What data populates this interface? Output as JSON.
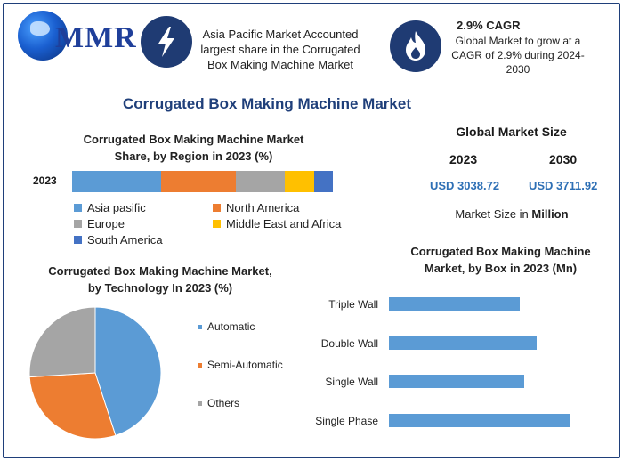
{
  "brand": {
    "logo_text": "MMR"
  },
  "header": {
    "highlight_text": "Asia Pacific Market Accounted largest share in the Corrugated Box Making Machine Market",
    "cagr_title": "2.9% CAGR",
    "cagr_text": "Global Market to grow at a CAGR of 2.9% during 2024-2030",
    "icons": [
      "lightning-icon",
      "flame-icon"
    ],
    "icon_circle_color": "#1f3b73"
  },
  "main_title": "Corrugated Box Making Machine Market",
  "global_market": {
    "title": "Global Market Size",
    "year_a": "2023",
    "year_b": "2030",
    "value_a": "USD 3038.72",
    "value_b": "USD 3711.92",
    "note_prefix": "Market Size in ",
    "note_unit": "Million"
  },
  "chart_data": [
    {
      "id": "region",
      "type": "bar",
      "stacked": true,
      "orientation": "horizontal",
      "title": "Corrugated Box Making Machine Market Share, by Region in 2023 (%)",
      "categories": [
        "2023"
      ],
      "series": [
        {
          "name": "Asia pasific",
          "values": [
            33
          ],
          "color": "#5b9bd5"
        },
        {
          "name": "North America",
          "values": [
            28
          ],
          "color": "#ed7d31"
        },
        {
          "name": "Europe",
          "values": [
            18
          ],
          "color": "#a5a5a5"
        },
        {
          "name": "Middle East and Africa",
          "values": [
            11
          ],
          "color": "#ffc000"
        },
        {
          "name": "South America",
          "values": [
            7
          ],
          "color": "#4472c4"
        }
      ],
      "legend": "bottom"
    },
    {
      "id": "technology",
      "type": "pie",
      "title": "Corrugated Box Making Machine Market, by Technology In 2023 (%)",
      "slices": [
        {
          "name": "Automatic",
          "value": 45,
          "color": "#5b9bd5"
        },
        {
          "name": "Semi-Automatic",
          "value": 29,
          "color": "#ed7d31"
        },
        {
          "name": "Others",
          "value": 26,
          "color": "#a5a5a5"
        }
      ],
      "legend": "right"
    },
    {
      "id": "box",
      "type": "bar",
      "orientation": "horizontal",
      "title": "Corrugated Box Making Machine Market, by Box in 2023 (Mn)",
      "categories": [
        "Triple Wall",
        "Double Wall",
        "Single Wall",
        "Single Phase"
      ],
      "values": [
        147,
        166,
        152,
        204
      ],
      "color": "#5b9bd5",
      "xlim": [
        0,
        210
      ],
      "grid": false
    }
  ]
}
